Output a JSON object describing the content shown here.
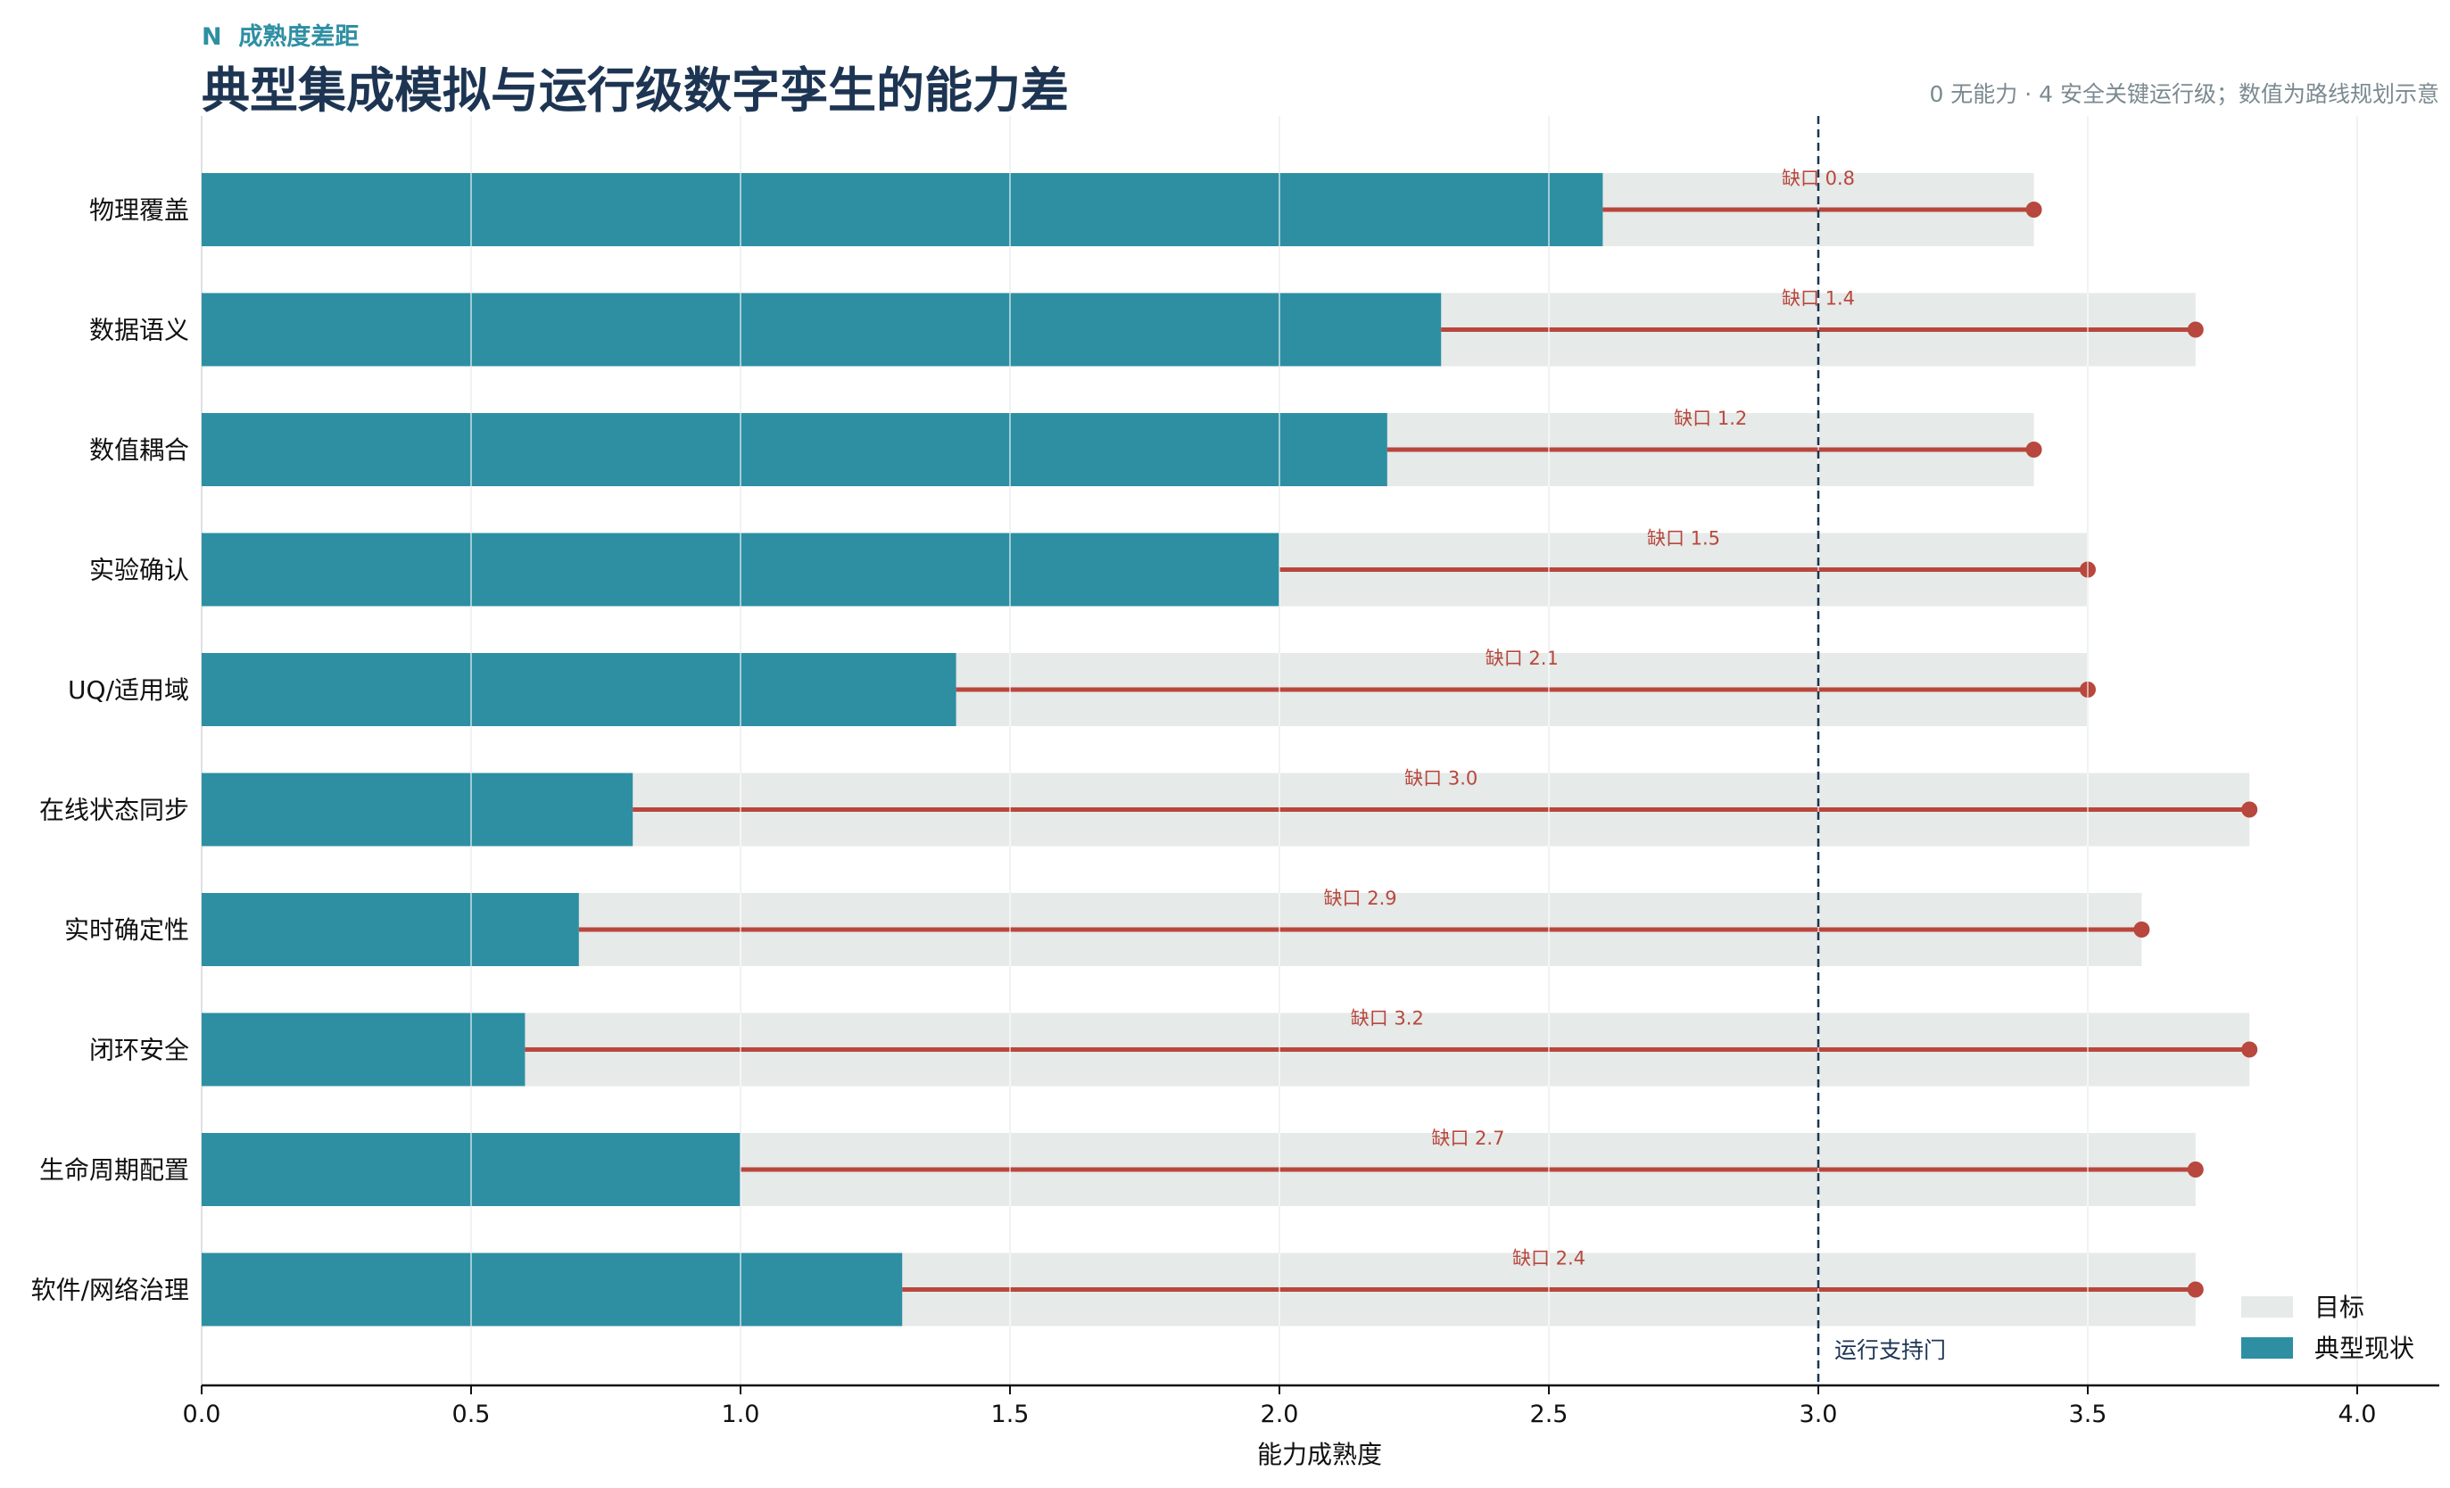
{
  "header": {
    "kicker": "N  成熟度差距",
    "title": "典型集成模拟与运行级数字孪生的能力差",
    "note": "0 无能力 · 4 安全关键运行级；数值为路线规划示意"
  },
  "colors": {
    "current": "#2e8fa3",
    "target": "#e6eae8",
    "gap": "#b8473d",
    "title": "#1d3552",
    "kicker": "#2e8fa3",
    "note": "#7b8a91",
    "gate": "#1d3552",
    "grid": "#dde2e4"
  },
  "chart_data": {
    "type": "bar",
    "orientation": "horizontal",
    "categories": [
      "物理覆盖",
      "数据语义",
      "数值耦合",
      "实验确认",
      "UQ/适用域",
      "在线状态同步",
      "实时确定性",
      "闭环安全",
      "生命周期配置",
      "软件/网络治理"
    ],
    "series": [
      {
        "name": "目标",
        "values": [
          3.4,
          3.7,
          3.4,
          3.5,
          3.5,
          3.8,
          3.6,
          3.8,
          3.7,
          3.7
        ]
      },
      {
        "name": "典型现状",
        "values": [
          2.6,
          2.3,
          2.2,
          2.0,
          1.4,
          0.8,
          0.7,
          0.6,
          1.0,
          1.3
        ]
      }
    ],
    "gap_labels": [
      "缺口 0.8",
      "缺口 1.4",
      "缺口 1.2",
      "缺口 1.5",
      "缺口 2.1",
      "缺口 3.0",
      "缺口 2.9",
      "缺口 3.2",
      "缺口 2.7",
      "缺口 2.4"
    ],
    "xlabel": "能力成熟度",
    "xlim": [
      0,
      4.15
    ],
    "xticks": [
      0.0,
      0.5,
      1.0,
      1.5,
      2.0,
      2.5,
      3.0,
      3.5,
      4.0
    ],
    "xtick_labels": [
      "0.0",
      "0.5",
      "1.0",
      "1.5",
      "2.0",
      "2.5",
      "3.0",
      "3.5",
      "4.0"
    ],
    "reference_line": {
      "value": 3.0,
      "label": "运行支持门"
    },
    "grid": "vertical",
    "legend": {
      "position": "bottom-right",
      "entries": [
        "目标",
        "典型现状"
      ]
    }
  }
}
